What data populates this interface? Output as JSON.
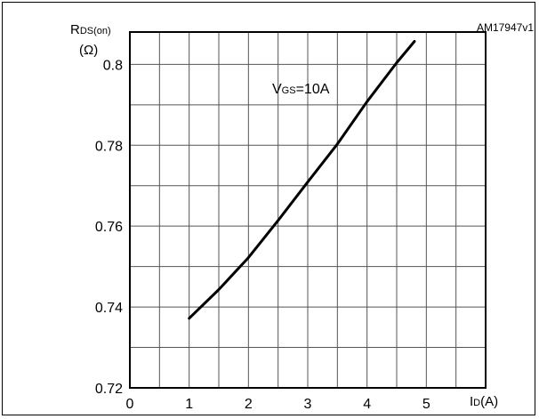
{
  "figure_ref": "AM17947v1",
  "chart_data": {
    "type": "line",
    "title": "",
    "xlabel": {
      "main": "I",
      "sub": "D",
      "unit": "(A)"
    },
    "ylabel": {
      "main": "R",
      "sub": "DS(on)",
      "unit": "(Ω)"
    },
    "annotation": {
      "main": "V",
      "sub": "GS",
      "rest": "=10A"
    },
    "xlim": [
      0,
      6
    ],
    "ylim": [
      0.72,
      0.808
    ],
    "x_ticks": [
      0,
      1,
      2,
      3,
      4,
      5
    ],
    "y_ticks": [
      0.72,
      0.74,
      0.76,
      0.78,
      0.8
    ],
    "y_tick_labels": [
      "0.72",
      "0.74",
      "0.76",
      "0.78",
      "0.8"
    ],
    "grid": true,
    "series": [
      {
        "x": [
          1.0,
          1.5,
          2.0,
          2.5,
          3.0,
          3.5,
          4.0,
          4.5,
          4.8
        ],
        "y": [
          0.7372,
          0.7443,
          0.7522,
          0.7614,
          0.7709,
          0.7803,
          0.7908,
          0.8004,
          0.8057
        ],
        "color": "#000000"
      }
    ]
  }
}
